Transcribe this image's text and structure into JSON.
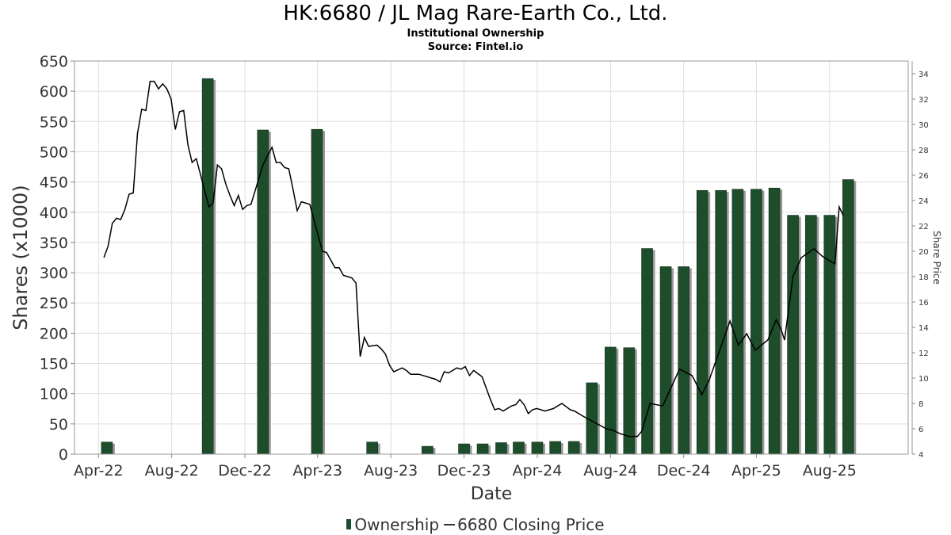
{
  "title": "HK:6680 / JL Mag Rare-Earth Co., Ltd.",
  "subtitle": "Institutional Ownership",
  "source": "Source: Fintel.io",
  "colors": {
    "bar": "#1e4d2b",
    "bar_shadow": "#9a9a9a",
    "line": "#000000",
    "grid": "#dddddd"
  },
  "chart_data": {
    "type": "bar",
    "x_start": "2022-02-20",
    "x_end": "2025-12-10",
    "xlabel": "Date",
    "ylabel": "Shares (x1000)",
    "ylabel_right": "Share Price",
    "ylim": [
      0,
      650
    ],
    "ylim_right": [
      4,
      35
    ],
    "grid": true,
    "legend_position": "bottom",
    "x_ticks": [
      {
        "date": "2022-04-01",
        "label": "Apr-22"
      },
      {
        "date": "2022-08-01",
        "label": "Aug-22"
      },
      {
        "date": "2022-12-01",
        "label": "Dec-22"
      },
      {
        "date": "2023-04-01",
        "label": "Apr-23"
      },
      {
        "date": "2023-08-01",
        "label": "Aug-23"
      },
      {
        "date": "2023-12-01",
        "label": "Dec-23"
      },
      {
        "date": "2024-04-01",
        "label": "Apr-24"
      },
      {
        "date": "2024-08-01",
        "label": "Aug-24"
      },
      {
        "date": "2024-12-01",
        "label": "Dec-24"
      },
      {
        "date": "2025-04-01",
        "label": "Apr-25"
      },
      {
        "date": "2025-08-01",
        "label": "Aug-25"
      }
    ],
    "y_ticks": [
      0,
      50,
      100,
      150,
      200,
      250,
      300,
      350,
      400,
      450,
      500,
      550,
      600,
      650
    ],
    "y_ticks_right": [
      4,
      6,
      8,
      10,
      12,
      14,
      16,
      18,
      20,
      22,
      24,
      26,
      28,
      30,
      32,
      34
    ],
    "series": [
      {
        "name": "Ownership",
        "type": "bar",
        "points": [
          [
            "2022-04-15",
            20
          ],
          [
            "2022-09-30",
            621
          ],
          [
            "2022-12-31",
            536
          ],
          [
            "2023-03-31",
            537
          ],
          [
            "2023-07-01",
            20
          ],
          [
            "2023-10-01",
            13
          ],
          [
            "2023-12-01",
            17
          ],
          [
            "2024-01-01",
            17
          ],
          [
            "2024-02-01",
            19
          ],
          [
            "2024-03-01",
            20
          ],
          [
            "2024-04-01",
            20
          ],
          [
            "2024-05-01",
            21
          ],
          [
            "2024-06-01",
            21
          ],
          [
            "2024-07-01",
            118
          ],
          [
            "2024-08-01",
            177
          ],
          [
            "2024-09-01",
            176
          ],
          [
            "2024-10-01",
            340
          ],
          [
            "2024-11-01",
            310
          ],
          [
            "2024-12-01",
            310
          ],
          [
            "2025-01-01",
            436
          ],
          [
            "2025-02-01",
            436
          ],
          [
            "2025-03-01",
            438
          ],
          [
            "2025-04-01",
            438
          ],
          [
            "2025-05-01",
            440
          ],
          [
            "2025-06-01",
            395
          ],
          [
            "2025-07-01",
            395
          ],
          [
            "2025-08-01",
            395
          ],
          [
            "2025-09-01",
            454
          ]
        ]
      },
      {
        "name": "6680 Closing Price",
        "type": "line",
        "points": [
          [
            "2022-04-10",
            19.5
          ],
          [
            "2022-04-17",
            20.4
          ],
          [
            "2022-04-24",
            22.2
          ],
          [
            "2022-05-01",
            22.6
          ],
          [
            "2022-05-08",
            22.5
          ],
          [
            "2022-05-15",
            23.3
          ],
          [
            "2022-05-22",
            24.5
          ],
          [
            "2022-05-29",
            24.6
          ],
          [
            "2022-06-05",
            29.3
          ],
          [
            "2022-06-12",
            31.2
          ],
          [
            "2022-06-19",
            31.1
          ],
          [
            "2022-06-26",
            33.4
          ],
          [
            "2022-07-03",
            33.4
          ],
          [
            "2022-07-10",
            32.8
          ],
          [
            "2022-07-17",
            33.2
          ],
          [
            "2022-07-24",
            32.8
          ],
          [
            "2022-07-31",
            32.0
          ],
          [
            "2022-08-07",
            29.6
          ],
          [
            "2022-08-14",
            31.0
          ],
          [
            "2022-08-21",
            31.1
          ],
          [
            "2022-08-28",
            28.4
          ],
          [
            "2022-09-04",
            27.0
          ],
          [
            "2022-09-11",
            27.3
          ],
          [
            "2022-10-02",
            23.5
          ],
          [
            "2022-10-09",
            23.8
          ],
          [
            "2022-10-16",
            26.8
          ],
          [
            "2022-10-23",
            26.5
          ],
          [
            "2022-10-30",
            25.3
          ],
          [
            "2022-11-06",
            24.4
          ],
          [
            "2022-11-13",
            23.6
          ],
          [
            "2022-11-20",
            24.4
          ],
          [
            "2022-11-27",
            23.3
          ],
          [
            "2022-12-04",
            23.6
          ],
          [
            "2022-12-11",
            23.7
          ],
          [
            "2022-12-31",
            26.8
          ],
          [
            "2023-01-15",
            28.2
          ],
          [
            "2023-01-22",
            27.0
          ],
          [
            "2023-01-29",
            27.0
          ],
          [
            "2023-02-05",
            26.6
          ],
          [
            "2023-02-12",
            26.5
          ],
          [
            "2023-02-19",
            24.9
          ],
          [
            "2023-02-26",
            23.2
          ],
          [
            "2023-03-05",
            23.9
          ],
          [
            "2023-03-19",
            23.7
          ],
          [
            "2023-04-09",
            20.0
          ],
          [
            "2023-04-16",
            19.9
          ],
          [
            "2023-04-23",
            19.3
          ],
          [
            "2023-04-30",
            18.7
          ],
          [
            "2023-05-07",
            18.7
          ],
          [
            "2023-05-14",
            18.1
          ],
          [
            "2023-05-28",
            17.9
          ],
          [
            "2023-06-04",
            17.5
          ],
          [
            "2023-06-11",
            11.7
          ],
          [
            "2023-06-18",
            13.2
          ],
          [
            "2023-06-25",
            12.5
          ],
          [
            "2023-07-09",
            12.6
          ],
          [
            "2023-07-16",
            12.3
          ],
          [
            "2023-07-23",
            11.9
          ],
          [
            "2023-07-30",
            11.0
          ],
          [
            "2023-08-06",
            10.5
          ],
          [
            "2023-08-20",
            10.8
          ],
          [
            "2023-08-27",
            10.6
          ],
          [
            "2023-09-03",
            10.3
          ],
          [
            "2023-09-17",
            10.3
          ],
          [
            "2023-09-24",
            10.2
          ],
          [
            "2023-10-15",
            9.9
          ],
          [
            "2023-10-22",
            9.7
          ],
          [
            "2023-10-29",
            10.5
          ],
          [
            "2023-11-05",
            10.4
          ],
          [
            "2023-11-12",
            10.6
          ],
          [
            "2023-11-19",
            10.8
          ],
          [
            "2023-11-26",
            10.7
          ],
          [
            "2023-12-03",
            10.9
          ],
          [
            "2023-12-10",
            10.2
          ],
          [
            "2023-12-17",
            10.6
          ],
          [
            "2023-12-31",
            10.1
          ],
          [
            "2024-01-07",
            9.2
          ],
          [
            "2024-01-14",
            8.3
          ],
          [
            "2024-01-21",
            7.5
          ],
          [
            "2024-01-28",
            7.6
          ],
          [
            "2024-02-04",
            7.4
          ],
          [
            "2024-02-18",
            7.8
          ],
          [
            "2024-02-25",
            7.9
          ],
          [
            "2024-03-03",
            8.3
          ],
          [
            "2024-03-10",
            7.9
          ],
          [
            "2024-03-17",
            7.2
          ],
          [
            "2024-03-24",
            7.5
          ],
          [
            "2024-03-31",
            7.6
          ],
          [
            "2024-04-14",
            7.4
          ],
          [
            "2024-04-21",
            7.5
          ],
          [
            "2024-04-28",
            7.6
          ],
          [
            "2024-05-12",
            8.0
          ],
          [
            "2024-05-26",
            7.5
          ],
          [
            "2024-06-02",
            7.4
          ],
          [
            "2024-06-16",
            7.0
          ],
          [
            "2024-07-25",
            6.0
          ],
          [
            "2024-08-04",
            5.9
          ],
          [
            "2024-08-18",
            5.6
          ],
          [
            "2024-09-01",
            5.4
          ],
          [
            "2024-09-15",
            5.4
          ],
          [
            "2024-09-22",
            5.8
          ],
          [
            "2024-10-06",
            8.0
          ],
          [
            "2024-10-27",
            7.8
          ],
          [
            "2024-11-24",
            10.7
          ],
          [
            "2024-12-15",
            10.2
          ],
          [
            "2024-12-31",
            8.7
          ],
          [
            "2025-01-12",
            9.8
          ],
          [
            "2025-02-16",
            14.5
          ],
          [
            "2025-03-02",
            12.6
          ],
          [
            "2025-03-16",
            13.5
          ],
          [
            "2025-03-30",
            12.2
          ],
          [
            "2025-04-20",
            13.0
          ],
          [
            "2025-05-04",
            14.6
          ],
          [
            "2025-05-11",
            14.0
          ],
          [
            "2025-05-18",
            13.0
          ],
          [
            "2025-06-01",
            18.0
          ],
          [
            "2025-06-15",
            19.5
          ],
          [
            "2025-07-06",
            20.2
          ],
          [
            "2025-07-20",
            19.6
          ],
          [
            "2025-08-10",
            19.0
          ],
          [
            "2025-08-17",
            23.5
          ],
          [
            "2025-08-24",
            22.8
          ]
        ]
      }
    ]
  },
  "legend": {
    "bar_label": "Ownership",
    "line_label": "6680 Closing Price"
  }
}
